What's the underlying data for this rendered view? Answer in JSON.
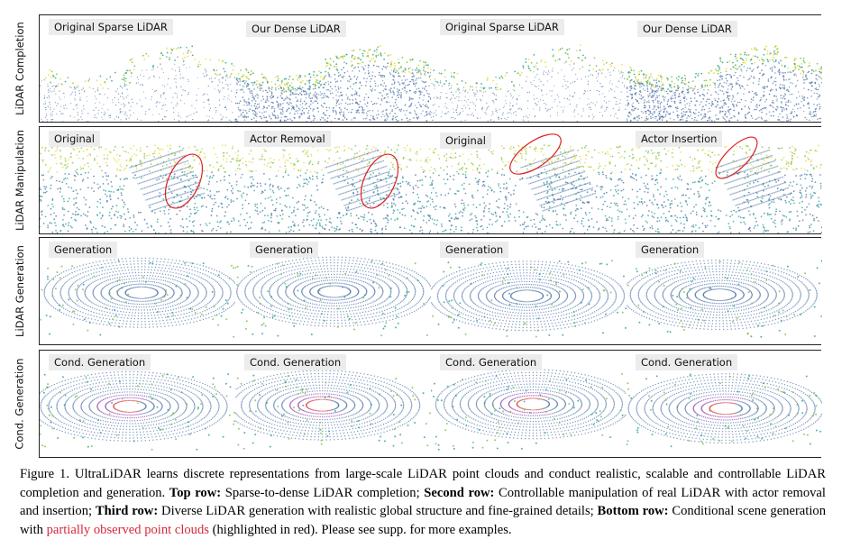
{
  "rows": [
    {
      "label": "LiDAR Completion",
      "panels": [
        "Original Sparse LiDAR",
        "Our Dense LiDAR",
        "Original Sparse LiDAR",
        "Our Dense LiDAR"
      ]
    },
    {
      "label": "LiDAR Manipulation",
      "panels": [
        "Original",
        "Actor Removal",
        "Original",
        "Actor Insertion"
      ]
    },
    {
      "label": "LiDAR Generation",
      "panels": [
        "Generation",
        "Generation",
        "Generation",
        "Generation"
      ]
    },
    {
      "label": "Cond. Generation",
      "panels": [
        "Cond. Generation",
        "Cond. Generation",
        "Cond. Generation",
        "Cond. Generation"
      ]
    }
  ],
  "caption": {
    "fig": "Figure 1. UltraLiDAR learns discrete representations from large-scale LiDAR point clouds and conduct realistic, scalable and controllable LiDAR completion and generation. ",
    "top_label": "Top row:",
    "top_text": " Sparse-to-dense LiDAR completion; ",
    "second_label": "Second row:",
    "second_text": " Controllable manipulation of real LiDAR with actor removal and insertion; ",
    "third_label": "Third row:",
    "third_text": " Diverse LiDAR generation with realistic global structure and fine-grained details; ",
    "bottom_label": "Bottom row:",
    "bottom_text_a": " Conditional scene generation with ",
    "red_text": "partially observed point clouds",
    "bottom_text_b": " (highlighted in red). Please see supp. for more examples."
  },
  "colors": {
    "points_blue": "#4a6fa5",
    "points_teal": "#2aa198",
    "points_green": "#7ac143",
    "points_yellow": "#e6d93a",
    "points_purple": "#8e3aa8",
    "points_red": "#d33a3a",
    "ellipse_red": "#e02020"
  }
}
